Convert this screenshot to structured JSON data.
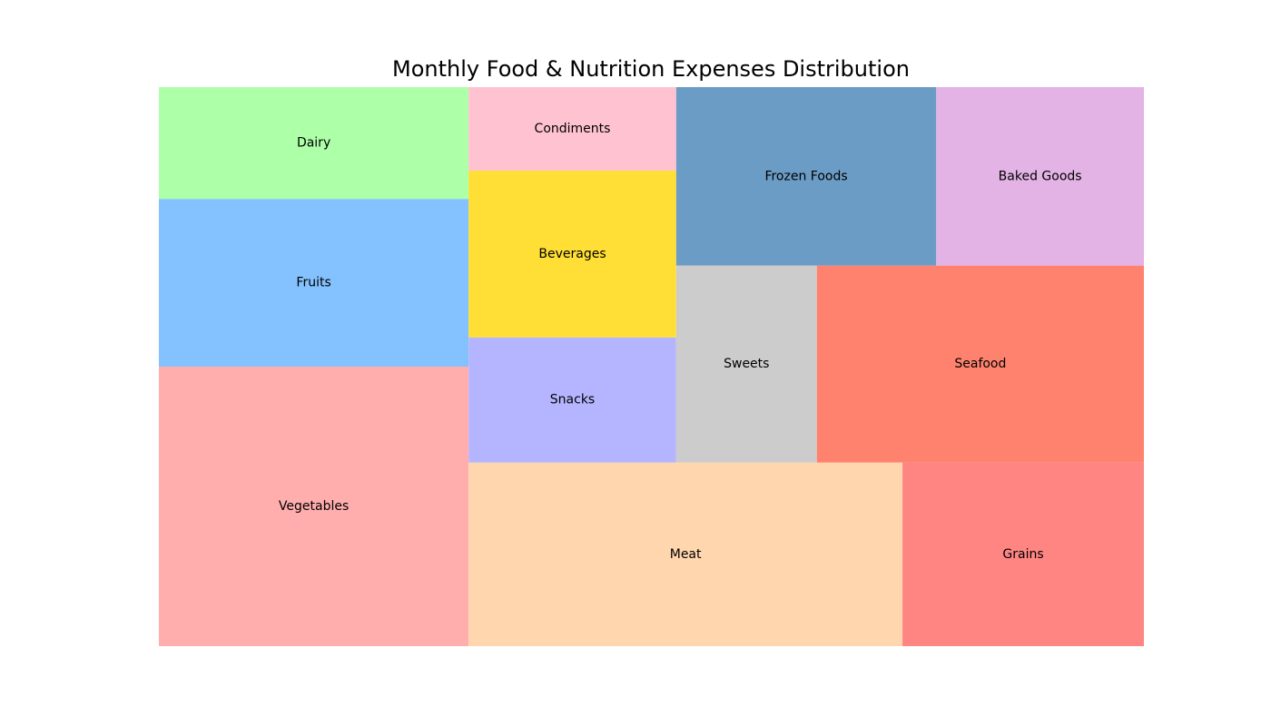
{
  "chart_data": {
    "type": "treemap",
    "title": "Monthly Food & Nutrition Expenses Distribution",
    "categories": [
      {
        "label": "Vegetables",
        "value": 250,
        "color": "#ffadad"
      },
      {
        "label": "Fruits",
        "value": 150,
        "color": "#84c1ff"
      },
      {
        "label": "Dairy",
        "value": 100,
        "color": "#adffa8"
      },
      {
        "label": "Meat",
        "value": 230,
        "color": "#ffd6ad"
      },
      {
        "label": "Grains",
        "value": 128,
        "color": "#ff8583"
      },
      {
        "label": "Snacks",
        "value": 75,
        "color": "#b5b5ff"
      },
      {
        "label": "Beverages",
        "value": 100,
        "color": "#ffdf35"
      },
      {
        "label": "Condiments",
        "value": 50,
        "color": "#ffc2d1"
      },
      {
        "label": "Sweets",
        "value": 80,
        "color": "#cccccc"
      },
      {
        "label": "Seafood",
        "value": 186,
        "color": "#ff826e"
      },
      {
        "label": "Frozen Foods",
        "value": 134,
        "color": "#6a9cc5"
      },
      {
        "label": "Baked Goods",
        "value": 107,
        "color": "#e2b3e4"
      }
    ]
  }
}
